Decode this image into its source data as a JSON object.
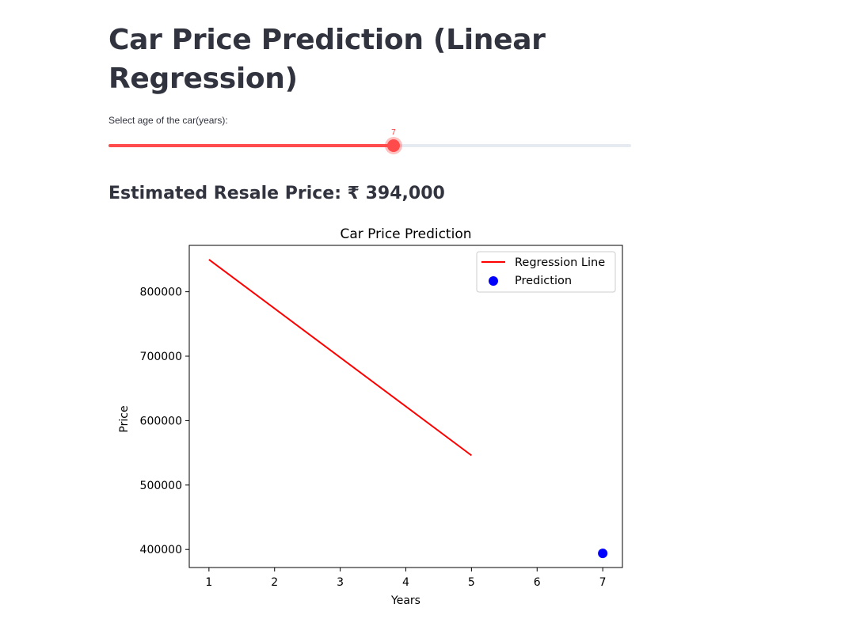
{
  "page": {
    "title": "Car Price Prediction (Linear Regression)",
    "slider": {
      "label": "Select age of the car(years):",
      "value": 7,
      "value_label": "7",
      "fill_fraction": 0.545,
      "accent_color": "#ff4b4b",
      "track_color": "#e6eaf1"
    },
    "result_text": "Estimated Resale Price: ₹ 394,000"
  },
  "chart_data": {
    "type": "line",
    "title": "Car Price Prediction",
    "xlabel": "Years",
    "ylabel": "Price",
    "xlim": [
      0.7,
      7.3
    ],
    "ylim": [
      372000,
      872000
    ],
    "x_ticks": [
      1,
      2,
      3,
      4,
      5,
      6,
      7
    ],
    "y_ticks": [
      400000,
      500000,
      600000,
      700000,
      800000
    ],
    "grid": false,
    "legend_position": "top-right",
    "series": [
      {
        "name": "Regression Line",
        "kind": "line",
        "color": "#ff0000",
        "x": [
          1,
          5
        ],
        "y": [
          850000,
          546000
        ]
      },
      {
        "name": "Prediction",
        "kind": "scatter",
        "color": "#0000ff",
        "x": [
          7
        ],
        "y": [
          394000
        ]
      }
    ]
  }
}
